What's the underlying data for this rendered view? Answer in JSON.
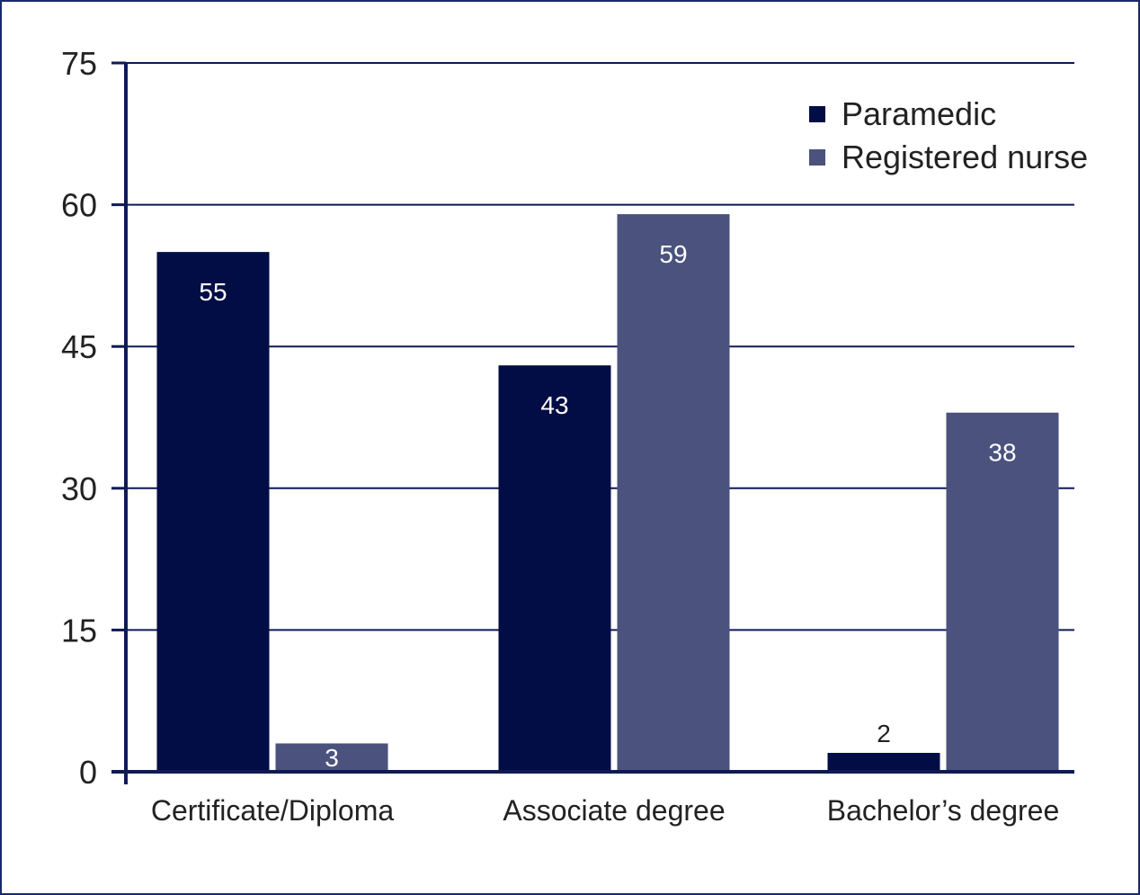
{
  "chart_data": {
    "type": "bar",
    "categories": [
      "Certificate/Diploma",
      "Associate degree",
      "Bachelor’s degree"
    ],
    "series": [
      {
        "name": "Paramedic",
        "values": [
          55,
          43,
          2
        ],
        "color": "#020d45"
      },
      {
        "name": "Registered nurse",
        "values": [
          3,
          59,
          38
        ],
        "color": "#4a527d"
      }
    ],
    "ylim": [
      0,
      75
    ],
    "yticks": [
      0,
      15,
      30,
      45,
      60,
      75
    ],
    "grid": true,
    "legend": "top-right",
    "data_labels": true,
    "axis_color": "#0f1a55"
  }
}
